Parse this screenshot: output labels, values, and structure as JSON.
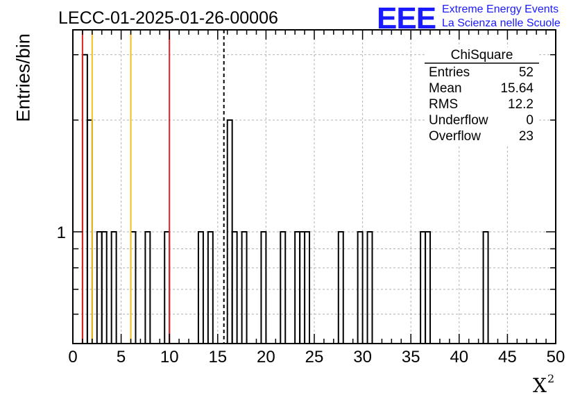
{
  "header": {
    "title": "LECC-01-2025-01-26-00006",
    "logo": "EEE",
    "logo_line1": "Extreme Energy Events",
    "logo_line2": "La Scienza nelle Scuole"
  },
  "colors": {
    "histogram": "#000000",
    "red_line": "#dd2222",
    "yellow_line": "#f0c020",
    "grid": "#b0b0b0",
    "logo": "#1a1aff"
  },
  "stats_box": {
    "title": "ChiSquare",
    "rows": [
      {
        "label": "Entries",
        "value": "52"
      },
      {
        "label": "Mean",
        "value": "15.64"
      },
      {
        "label": "RMS",
        "value": "12.2"
      },
      {
        "label": "Underflow",
        "value": "0"
      },
      {
        "label": "Overflow",
        "value": "23"
      }
    ]
  },
  "chart_data": {
    "type": "bar",
    "xlabel": "X",
    "xlabel_superscript": "2",
    "ylabel": "Entries/bin",
    "xlim": [
      0,
      50
    ],
    "ylim": [
      0.5,
      3.5
    ],
    "yscale": "log",
    "grid": true,
    "bin_width": 0.5,
    "x_ticks": [
      0,
      5,
      10,
      15,
      20,
      25,
      30,
      35,
      40,
      45,
      50
    ],
    "y_tick_labels": [
      {
        "value": 1,
        "label": "1"
      }
    ],
    "bins": [
      {
        "x": 1.0,
        "y": 3
      },
      {
        "x": 1.5,
        "y": 2
      },
      {
        "x": 2.5,
        "y": 1
      },
      {
        "x": 3.0,
        "y": 1
      },
      {
        "x": 4.0,
        "y": 1
      },
      {
        "x": 6.0,
        "y": 1
      },
      {
        "x": 7.5,
        "y": 1
      },
      {
        "x": 9.5,
        "y": 1
      },
      {
        "x": 13.0,
        "y": 1
      },
      {
        "x": 14.0,
        "y": 1
      },
      {
        "x": 16.0,
        "y": 2
      },
      {
        "x": 16.5,
        "y": 1
      },
      {
        "x": 17.5,
        "y": 1
      },
      {
        "x": 19.5,
        "y": 1
      },
      {
        "x": 21.5,
        "y": 1
      },
      {
        "x": 23.0,
        "y": 1
      },
      {
        "x": 23.5,
        "y": 1
      },
      {
        "x": 24.0,
        "y": 1
      },
      {
        "x": 27.5,
        "y": 1
      },
      {
        "x": 29.5,
        "y": 1
      },
      {
        "x": 30.5,
        "y": 1
      },
      {
        "x": 36.0,
        "y": 1
      },
      {
        "x": 36.5,
        "y": 1
      },
      {
        "x": 42.5,
        "y": 1
      }
    ],
    "vertical_lines": [
      {
        "x": 1,
        "color": "red",
        "style": "solid"
      },
      {
        "x": 2,
        "color": "yellow",
        "style": "solid"
      },
      {
        "x": 6,
        "color": "yellow",
        "style": "solid"
      },
      {
        "x": 10,
        "color": "red",
        "style": "solid"
      },
      {
        "x": 15.64,
        "color": "black",
        "style": "dashed"
      }
    ]
  }
}
